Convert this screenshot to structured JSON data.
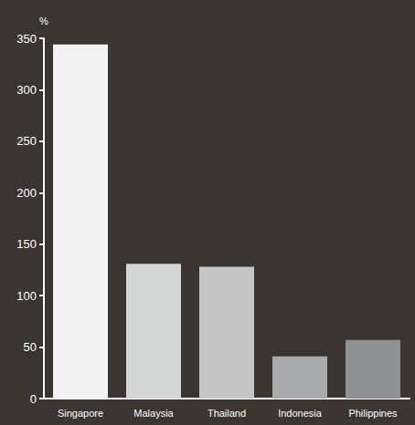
{
  "chart_data": {
    "type": "bar",
    "ylabel": "%",
    "categories": [
      "Singapore",
      "Malaysia",
      "Thailand",
      "Indonesia",
      "Philippines"
    ],
    "values": [
      344,
      131,
      128,
      41,
      57
    ],
    "colors": [
      "#f2f2f2",
      "#d4d6d6",
      "#c4c5c4",
      "#a9aaab",
      "#8e9091"
    ],
    "ylim": [
      0,
      350
    ],
    "yticks": [
      0,
      50,
      100,
      150,
      200,
      250,
      300,
      350
    ],
    "grid": false
  }
}
